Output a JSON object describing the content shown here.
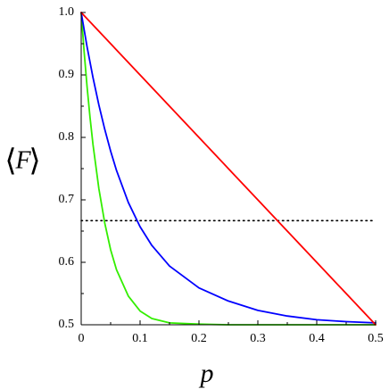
{
  "chart_data": {
    "type": "line",
    "title": "",
    "xlabel": "p",
    "ylabel_parts": {
      "left": "⟨",
      "var": "F",
      "right": "⟩"
    },
    "xlim": [
      0,
      0.5
    ],
    "ylim": [
      0.5,
      1.0
    ],
    "x_ticks": [
      0,
      0.1,
      0.2,
      0.3,
      0.4,
      0.5
    ],
    "x_tick_labels": [
      "0",
      "0.1",
      "0.2",
      "0.3",
      "0.4",
      "0.5"
    ],
    "y_ticks": [
      0.5,
      0.6,
      0.7,
      0.8,
      0.9,
      1.0
    ],
    "y_tick_labels": [
      "0.5",
      "0.6",
      "0.7",
      "0.8",
      "0.9",
      "1.0"
    ],
    "grid": false,
    "legend": "none",
    "series": [
      {
        "color": "#ff0000",
        "x": [
          0,
          0.1,
          0.2,
          0.3,
          0.4,
          0.5
        ],
        "y": [
          1.0,
          0.9,
          0.8,
          0.7,
          0.6,
          0.5
        ]
      },
      {
        "color": "#0000ff",
        "x": [
          0,
          0.01,
          0.02,
          0.03,
          0.04,
          0.05,
          0.06,
          0.08,
          0.1,
          0.12,
          0.15,
          0.2,
          0.25,
          0.3,
          0.35,
          0.4,
          0.45,
          0.5
        ],
        "y": [
          1.0,
          0.945,
          0.896,
          0.852,
          0.813,
          0.778,
          0.747,
          0.696,
          0.657,
          0.627,
          0.594,
          0.559,
          0.538,
          0.523,
          0.514,
          0.508,
          0.505,
          0.503
        ]
      },
      {
        "color": "#33ee00",
        "x": [
          0,
          0.005,
          0.01,
          0.015,
          0.02,
          0.03,
          0.04,
          0.05,
          0.06,
          0.08,
          0.1,
          0.12,
          0.15,
          0.2,
          0.25,
          0.3,
          0.4,
          0.5
        ],
        "y": [
          1.0,
          0.937,
          0.881,
          0.832,
          0.789,
          0.718,
          0.663,
          0.62,
          0.588,
          0.546,
          0.522,
          0.51,
          0.503,
          0.501,
          0.5,
          0.5,
          0.5,
          0.5
        ]
      }
    ],
    "reference_line": {
      "color": "#000000",
      "style": "dotted",
      "y": 0.6667,
      "x_range": [
        0,
        0.5
      ]
    }
  }
}
